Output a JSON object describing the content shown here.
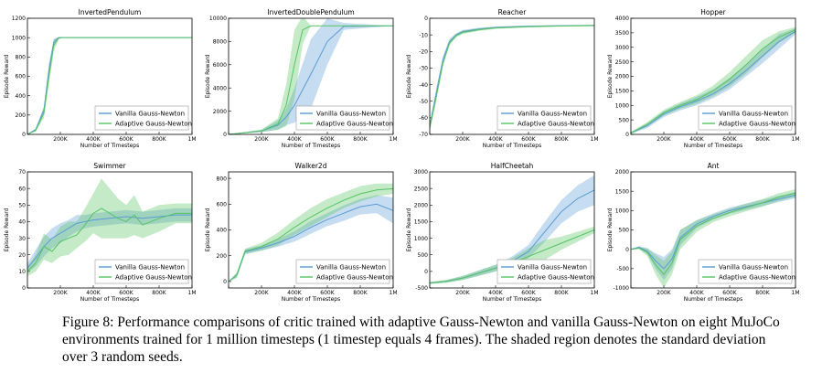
{
  "chart_data": [
    {
      "type": "line",
      "title": "InvertedPendulum",
      "xlabel": "Number of Timesteps",
      "ylabel": "Episode Reward",
      "xlim": [
        0,
        1000000
      ],
      "ylim": [
        0,
        1200
      ],
      "yticks": [
        0,
        200,
        400,
        600,
        800,
        1000,
        1200
      ],
      "xtick_labels": [
        "",
        "200K",
        "400K",
        "600K",
        "800K",
        "1M"
      ],
      "legend": "bottom-right",
      "series": [
        {
          "name": "Vanilla Gauss-Newton",
          "x": [
            0,
            50000,
            100000,
            130000,
            160000,
            190000,
            220000,
            1000000
          ],
          "values": [
            0,
            50,
            250,
            650,
            950,
            1000,
            1000,
            1000
          ],
          "std": [
            0,
            10,
            40,
            80,
            40,
            5,
            0,
            0
          ]
        },
        {
          "name": "Adaptive Gauss-Newton",
          "x": [
            0,
            50000,
            100000,
            130000,
            160000,
            190000,
            220000,
            1000000
          ],
          "values": [
            0,
            40,
            220,
            600,
            920,
            995,
            1000,
            1000
          ],
          "std": [
            0,
            10,
            50,
            100,
            60,
            10,
            0,
            0
          ]
        }
      ]
    },
    {
      "type": "line",
      "title": "InvertedDoublePendulum",
      "xlabel": "Number of Timesteps",
      "ylabel": "Episode Reward",
      "xlim": [
        0,
        1000000
      ],
      "ylim": [
        0,
        10000
      ],
      "yticks": [
        0,
        2000,
        4000,
        6000,
        8000,
        10000
      ],
      "xtick_labels": [
        "",
        "200K",
        "400K",
        "600K",
        "800K",
        "1M"
      ],
      "legend": "bottom-right",
      "series": [
        {
          "name": "Vanilla Gauss-Newton",
          "x": [
            0,
            200000,
            300000,
            350000,
            400000,
            500000,
            600000,
            700000,
            1000000
          ],
          "values": [
            0,
            300,
            800,
            1500,
            2500,
            5200,
            8000,
            9300,
            9350
          ],
          "std": [
            0,
            100,
            400,
            700,
            1500,
            3000,
            2000,
            300,
            0
          ]
        },
        {
          "name": "Adaptive Gauss-Newton",
          "x": [
            0,
            200000,
            300000,
            350000,
            400000,
            450000,
            500000,
            1000000
          ],
          "values": [
            0,
            300,
            900,
            2500,
            6000,
            9000,
            9350,
            9350
          ],
          "std": [
            0,
            100,
            500,
            1800,
            3000,
            1200,
            0,
            0
          ]
        }
      ]
    },
    {
      "type": "line",
      "title": "Reacher",
      "xlabel": "Number of Timesteps",
      "ylabel": "Episode Reward",
      "xlim": [
        0,
        1000000
      ],
      "ylim": [
        -70,
        0
      ],
      "yticks": [
        -70,
        -60,
        -50,
        -40,
        -30,
        -20,
        -10,
        0
      ],
      "xtick_labels": [
        "",
        "200K",
        "400K",
        "600K",
        "800K",
        "1M"
      ],
      "legend": "bottom-right",
      "series": [
        {
          "name": "Vanilla Gauss-Newton",
          "x": [
            0,
            40000,
            80000,
            120000,
            160000,
            200000,
            300000,
            400000,
            600000,
            800000,
            1000000
          ],
          "values": [
            -65,
            -45,
            -25,
            -14,
            -10,
            -8,
            -6.5,
            -5.5,
            -4.8,
            -4.5,
            -4.3
          ],
          "std": [
            2,
            3,
            2,
            1.5,
            1,
            1,
            0.8,
            0.6,
            0.5,
            0.4,
            0.4
          ]
        },
        {
          "name": "Adaptive Gauss-Newton",
          "x": [
            0,
            40000,
            80000,
            120000,
            160000,
            200000,
            300000,
            400000,
            600000,
            800000,
            1000000
          ],
          "values": [
            -66,
            -47,
            -27,
            -15,
            -10.5,
            -8.5,
            -6.8,
            -5.8,
            -5,
            -4.6,
            -4.4
          ],
          "std": [
            2,
            3,
            2,
            1.5,
            1,
            1,
            0.8,
            0.6,
            0.5,
            0.4,
            0.4
          ]
        }
      ]
    },
    {
      "type": "line",
      "title": "Hopper",
      "xlabel": "Number of Timesteps",
      "ylabel": "Episode Reward",
      "xlim": [
        0,
        1000000
      ],
      "ylim": [
        0,
        4000
      ],
      "yticks": [
        0,
        500,
        1000,
        1500,
        2000,
        2500,
        3000,
        3500,
        4000
      ],
      "xtick_labels": [
        "",
        "200K",
        "400K",
        "600K",
        "800K",
        "1M"
      ],
      "legend": "bottom-right",
      "series": [
        {
          "name": "Vanilla Gauss-Newton",
          "x": [
            0,
            100000,
            200000,
            300000,
            400000,
            500000,
            600000,
            700000,
            800000,
            900000,
            1000000
          ],
          "values": [
            50,
            300,
            700,
            950,
            1150,
            1400,
            1750,
            2200,
            2700,
            3200,
            3550
          ],
          "std": [
            30,
            80,
            100,
            120,
            150,
            150,
            200,
            200,
            250,
            250,
            100
          ]
        },
        {
          "name": "Adaptive Gauss-Newton",
          "x": [
            0,
            100000,
            200000,
            300000,
            400000,
            500000,
            600000,
            700000,
            800000,
            900000,
            1000000
          ],
          "values": [
            50,
            350,
            750,
            1000,
            1200,
            1500,
            1900,
            2400,
            2950,
            3350,
            3600
          ],
          "std": [
            30,
            80,
            100,
            120,
            150,
            180,
            250,
            300,
            300,
            200,
            100
          ]
        }
      ]
    },
    {
      "type": "line",
      "title": "Swimmer",
      "xlabel": "Number of Timesteps",
      "ylabel": "Episode Reward",
      "xlim": [
        0,
        1000000
      ],
      "ylim": [
        0,
        70
      ],
      "yticks": [
        0,
        10,
        20,
        30,
        40,
        50,
        60,
        70
      ],
      "xtick_labels": [
        "",
        "200K",
        "400K",
        "600K",
        "800K",
        "1M"
      ],
      "legend": "bottom-right",
      "series": [
        {
          "name": "Vanilla Gauss-Newton",
          "x": [
            0,
            50000,
            100000,
            150000,
            200000,
            250000,
            300000,
            350000,
            400000,
            500000,
            600000,
            700000,
            800000,
            900000,
            1000000
          ],
          "values": [
            12,
            18,
            25,
            30,
            33,
            36,
            39,
            40,
            41,
            42,
            43,
            42,
            43,
            44,
            44
          ],
          "std": [
            3,
            5,
            6,
            6,
            6,
            5,
            5,
            4,
            4,
            4,
            4,
            4,
            4,
            4,
            4
          ]
        },
        {
          "name": "Adaptive Gauss-Newton",
          "x": [
            0,
            50000,
            100000,
            150000,
            200000,
            250000,
            300000,
            350000,
            400000,
            450000,
            500000,
            550000,
            600000,
            650000,
            700000,
            800000,
            900000,
            1000000
          ],
          "values": [
            10,
            15,
            25,
            22,
            28,
            30,
            32,
            38,
            45,
            48,
            45,
            42,
            40,
            44,
            38,
            42,
            45,
            45
          ],
          "std": [
            3,
            5,
            8,
            7,
            9,
            10,
            8,
            10,
            12,
            18,
            15,
            12,
            10,
            12,
            8,
            8,
            6,
            6
          ]
        }
      ]
    },
    {
      "type": "line",
      "title": "Walker2d",
      "xlabel": "Number of Timesteps",
      "ylabel": "Episode Reward",
      "xlim": [
        0,
        1000000
      ],
      "ylim": [
        -50,
        850
      ],
      "yticks": [
        0,
        200,
        400,
        600,
        800
      ],
      "xtick_labels": [
        "",
        "200K",
        "400K",
        "600K",
        "800K",
        "1M"
      ],
      "legend": "bottom-right",
      "series": [
        {
          "name": "Vanilla Gauss-Newton",
          "x": [
            0,
            50000,
            100000,
            200000,
            300000,
            400000,
            500000,
            600000,
            700000,
            800000,
            900000,
            1000000
          ],
          "values": [
            0,
            50,
            230,
            260,
            300,
            350,
            420,
            480,
            530,
            580,
            600,
            550
          ],
          "std": [
            0,
            20,
            20,
            20,
            30,
            40,
            50,
            50,
            60,
            60,
            70,
            100
          ]
        },
        {
          "name": "Adaptive Gauss-Newton",
          "x": [
            0,
            50000,
            100000,
            200000,
            300000,
            400000,
            500000,
            600000,
            700000,
            800000,
            900000,
            1000000
          ],
          "values": [
            0,
            50,
            235,
            270,
            330,
            420,
            500,
            570,
            630,
            680,
            710,
            720
          ],
          "std": [
            0,
            20,
            20,
            30,
            50,
            60,
            70,
            70,
            60,
            60,
            50,
            40
          ]
        }
      ]
    },
    {
      "type": "line",
      "title": "HalfCheetah",
      "xlabel": "Number of Timesteps",
      "ylabel": "Episode Reward",
      "xlim": [
        0,
        1000000
      ],
      "ylim": [
        -500,
        3000
      ],
      "yticks": [
        -500,
        0,
        500,
        1000,
        1500,
        2000,
        2500,
        3000
      ],
      "xtick_labels": [
        "",
        "200K",
        "400K",
        "600K",
        "800K",
        "1M"
      ],
      "legend": "bottom-right",
      "series": [
        {
          "name": "Vanilla Gauss-Newton",
          "x": [
            0,
            100000,
            200000,
            300000,
            400000,
            500000,
            600000,
            700000,
            800000,
            900000,
            1000000
          ],
          "values": [
            -350,
            -300,
            -200,
            -50,
            100,
            300,
            600,
            1200,
            1800,
            2200,
            2450
          ],
          "std": [
            30,
            40,
            60,
            80,
            100,
            150,
            200,
            300,
            350,
            400,
            450
          ]
        },
        {
          "name": "Adaptive Gauss-Newton",
          "x": [
            0,
            100000,
            200000,
            300000,
            400000,
            500000,
            600000,
            700000,
            800000,
            900000,
            1000000
          ],
          "values": [
            -350,
            -300,
            -200,
            -50,
            100,
            250,
            450,
            650,
            850,
            1050,
            1250
          ],
          "std": [
            30,
            40,
            60,
            80,
            100,
            150,
            250,
            300,
            200,
            150,
            100
          ]
        }
      ]
    },
    {
      "type": "line",
      "title": "Ant",
      "xlabel": "Number of Timesteps",
      "ylabel": "Episode Reward",
      "xlim": [
        0,
        1000000
      ],
      "ylim": [
        -1000,
        2000
      ],
      "yticks": [
        -1000,
        -500,
        0,
        500,
        1000,
        1500,
        2000
      ],
      "xtick_labels": [
        "",
        "200K",
        "400K",
        "600K",
        "800K",
        "1M"
      ],
      "legend": "bottom-right",
      "series": [
        {
          "name": "Vanilla Gauss-Newton",
          "x": [
            0,
            50000,
            100000,
            150000,
            200000,
            250000,
            300000,
            400000,
            500000,
            600000,
            700000,
            800000,
            900000,
            1000000
          ],
          "values": [
            0,
            50,
            -50,
            -300,
            -500,
            -250,
            300,
            650,
            850,
            1000,
            1100,
            1200,
            1300,
            1400
          ],
          "std": [
            10,
            30,
            80,
            200,
            300,
            250,
            200,
            100,
            80,
            80,
            80,
            80,
            80,
            80
          ]
        },
        {
          "name": "Adaptive Gauss-Newton",
          "x": [
            0,
            50000,
            100000,
            150000,
            200000,
            250000,
            300000,
            400000,
            500000,
            600000,
            700000,
            800000,
            900000,
            1000000
          ],
          "values": [
            0,
            30,
            -80,
            -400,
            -650,
            -350,
            250,
            600,
            800,
            950,
            1080,
            1200,
            1350,
            1450
          ],
          "std": [
            10,
            30,
            100,
            250,
            350,
            300,
            250,
            150,
            100,
            100,
            100,
            100,
            100,
            100
          ]
        }
      ]
    }
  ],
  "colors": {
    "vanilla": "#5b9bd5",
    "adaptive": "#55c462"
  },
  "caption": "Figure 8: Performance comparisons of critic trained with adaptive Gauss-Newton and vanilla Gauss-Newton on eight MuJoCo environments trained for 1 million timesteps (1 timestep equals 4 frames). The shaded region denotes the standard deviation over 3 random seeds."
}
